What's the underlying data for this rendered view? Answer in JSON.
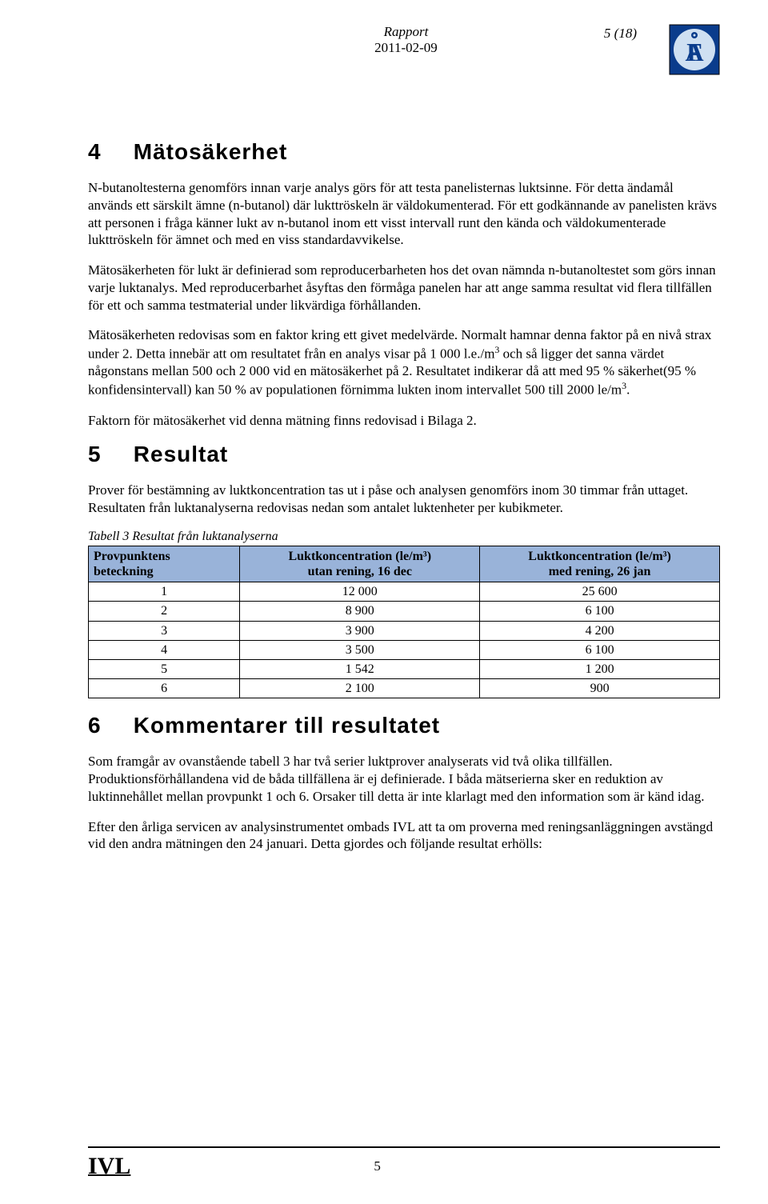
{
  "header": {
    "title": "Rapport",
    "date": "2011-02-09",
    "page_indicator": "5 (18)"
  },
  "section4": {
    "num": "4",
    "title": "Mätosäkerhet",
    "p1": "N-butanoltesterna genomförs innan varje analys görs för att testa panelisternas luktsinne. För detta ändamål används ett särskilt ämne (n-butanol) där lukttröskeln är väldokumenterad. För ett godkännande av panelisten krävs att personen i fråga känner lukt av n-butanol inom ett visst intervall runt den kända och väldokumenterade lukttröskeln för ämnet och med en viss standardavvikelse.",
    "p2": "Mätosäkerheten för lukt är definierad som reproducerbarheten hos det ovan nämnda n-butanoltestet som görs innan varje luktanalys. Med reproducerbarhet åsyftas den förmåga panelen har att ange samma resultat vid flera tillfällen för ett och samma testmaterial under likvärdiga förhållanden.",
    "p3_a": "Mätosäkerheten redovisas som en faktor kring ett givet medelvärde. Normalt hamnar denna faktor på en nivå strax under 2. Detta innebär att om resultatet från en analys visar på 1 000 l.e./m",
    "p3_b": " och så ligger det sanna värdet någonstans mellan 500 och 2 000 vid en mätosäkerhet på 2. Resultatet indikerar då att med 95 % säkerhet(95 % konfidensintervall) kan 50 % av populationen förnimma lukten inom intervallet 500 till 2000 le/m",
    "p3_c": ".",
    "p4": "Faktorn för mätosäkerhet vid denna mätning finns redovisad i Bilaga 2."
  },
  "section5": {
    "num": "5",
    "title": "Resultat",
    "p1": "Prover för bestämning av luktkoncentration tas ut i påse och analysen genomförs inom 30 timmar från uttaget. Resultaten från luktanalyserna redovisas nedan som antalet luktenheter per kubikmeter.",
    "table_caption": "Tabell 3   Resultat från luktanalyserna",
    "table": {
      "col1_l1": "Provpunktens",
      "col1_l2": "beteckning",
      "col2_l1": "Luktkoncentration (le/m³)",
      "col2_l2": "utan rening, 16 dec",
      "col3_l1": "Luktkoncentration (le/m³)",
      "col3_l2": "med rening, 26 jan",
      "rows": [
        {
          "c1": "1",
          "c2": "12 000",
          "c3": "25 600"
        },
        {
          "c1": "2",
          "c2": "8 900",
          "c3": "6 100"
        },
        {
          "c1": "3",
          "c2": "3 900",
          "c3": "4 200"
        },
        {
          "c1": "4",
          "c2": "3 500",
          "c3": "6 100"
        },
        {
          "c1": "5",
          "c2": "1 542",
          "c3": "1 200"
        },
        {
          "c1": "6",
          "c2": "2 100",
          "c3": "900"
        }
      ]
    }
  },
  "section6": {
    "num": "6",
    "title": "Kommentarer till resultatet",
    "p1": "Som framgår av ovanstående tabell 3 har två serier luktprover analyserats vid två olika tillfällen. Produktionsförhållandena vid de båda tillfällena är ej definierade. I båda mätserierna sker en reduktion av luktinnehållet mellan provpunkt 1 och 6. Orsaker till detta är inte klarlagt med den information som är känd idag.",
    "p2": "Efter den årliga servicen av analysinstrumentet ombads IVL att ta om proverna med reningsanläggningen avstängd vid den andra mätningen den 24 januari. Detta gjordes och följande resultat erhölls:"
  },
  "footer": {
    "logo_text": "IVL",
    "page_num": "5"
  },
  "colors": {
    "table_header_bg": "#99b3d9",
    "logo_blue": "#0a3c8c",
    "logo_light": "#cfe0f2"
  }
}
